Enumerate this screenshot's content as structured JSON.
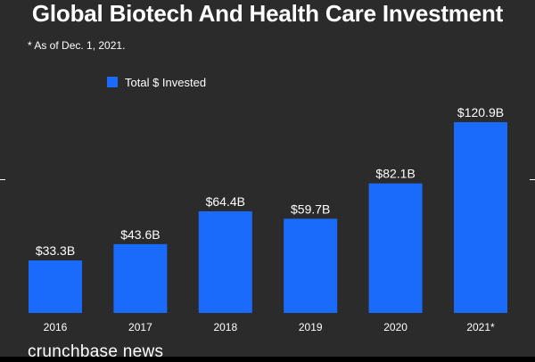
{
  "header": {
    "title": "Global Biotech And Health Care Investment",
    "note": "* As of Dec. 1, 2021."
  },
  "footer": {
    "brand": "crunchbase news"
  },
  "colors": {
    "bar": "#1a6bfa",
    "background": "#2b2b2b",
    "text": "#ffffff"
  },
  "chart_data": {
    "type": "bar",
    "title": "Global Biotech And Health Care Investment",
    "subtitle": "* As of Dec. 1, 2021.",
    "legend": [
      {
        "label": "Total $ Invested",
        "color": "#1a6bfa"
      }
    ],
    "legend_position": "top-left",
    "categories": [
      "2016",
      "2017",
      "2018",
      "2019",
      "2020",
      "2021*"
    ],
    "values": [
      33.3,
      43.6,
      64.4,
      59.7,
      82.1,
      120.9
    ],
    "data_labels": [
      "$33.3B",
      "$43.6B",
      "$64.4B",
      "$59.7B",
      "$82.1B",
      "$120.9B"
    ],
    "units": "billions USD",
    "xlabel": "",
    "ylabel": "",
    "ylim": [
      0,
      120.9
    ],
    "grid": false
  }
}
